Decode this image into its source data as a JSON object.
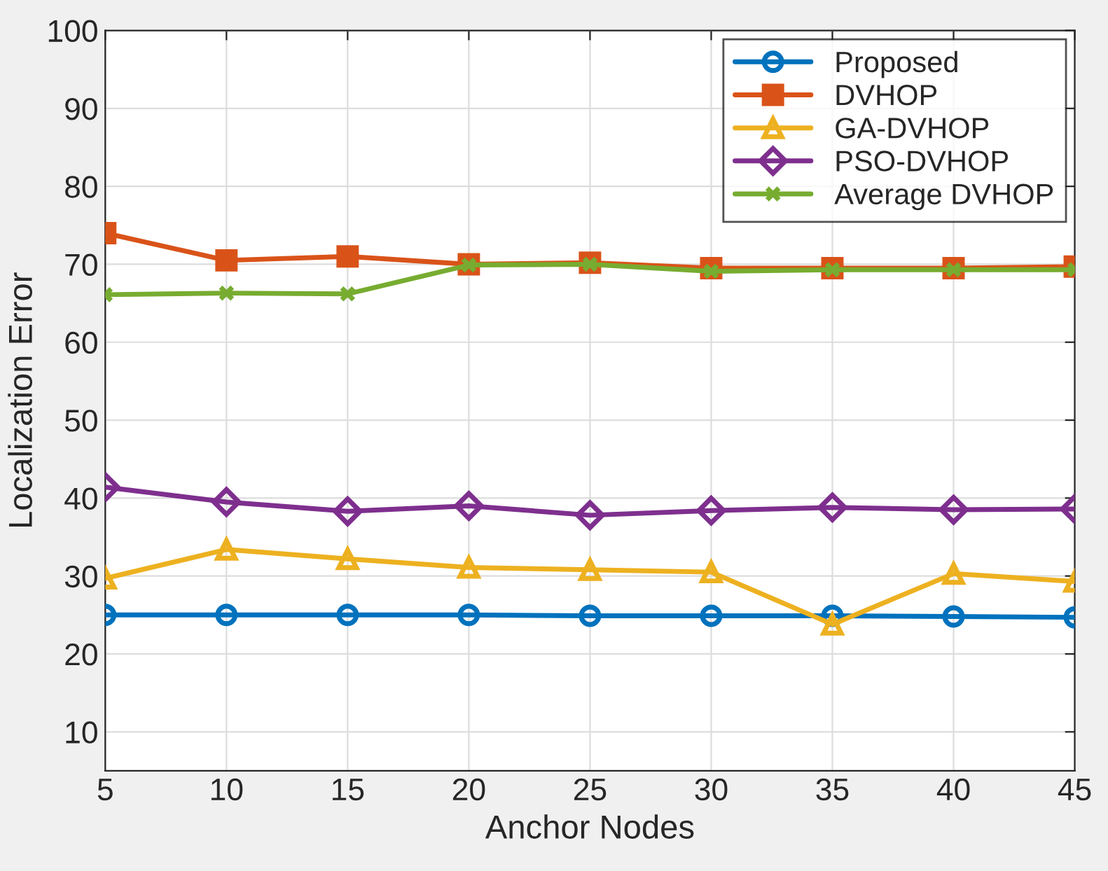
{
  "chart_data": {
    "type": "line",
    "xlabel": "Anchor Nodes",
    "ylabel": "Localization Error",
    "x": [
      5,
      10,
      15,
      20,
      25,
      30,
      35,
      40,
      45
    ],
    "xlim": [
      5,
      45
    ],
    "xticks": [
      5,
      10,
      15,
      20,
      25,
      30,
      35,
      40,
      45
    ],
    "ylim": [
      5,
      100
    ],
    "yticks": [
      10,
      20,
      30,
      40,
      50,
      60,
      70,
      80,
      90,
      100
    ],
    "grid": true,
    "legend": "top right",
    "line_style": "solid",
    "series": [
      {
        "name": "Proposed",
        "color": "#0072bd",
        "marker": "circle",
        "values": [
          25,
          25,
          25,
          25,
          24.9,
          24.9,
          24.9,
          24.8,
          24.7
        ]
      },
      {
        "name": "DVHOP",
        "color": "#d95319",
        "marker": "square",
        "values": [
          74,
          70.5,
          71,
          70,
          70.2,
          69.5,
          69.5,
          69.5,
          69.7
        ]
      },
      {
        "name": "GA-DVHOP",
        "color": "#edb120",
        "marker": "triangle",
        "values": [
          29.7,
          33.4,
          32.2,
          31.1,
          30.8,
          30.5,
          23.8,
          30.3,
          29.3
        ]
      },
      {
        "name": "PSO-DVHOP",
        "color": "#7e2f8e",
        "marker": "diamond",
        "values": [
          41.4,
          39.5,
          38.3,
          39,
          37.8,
          38.4,
          38.8,
          38.5,
          38.6
        ]
      },
      {
        "name": "Average DVHOP",
        "color": "#77ac30",
        "marker": "cross",
        "values": [
          66.1,
          66.3,
          66.2,
          69.9,
          70,
          69.1,
          69.3,
          69.3,
          69.3
        ]
      }
    ]
  }
}
